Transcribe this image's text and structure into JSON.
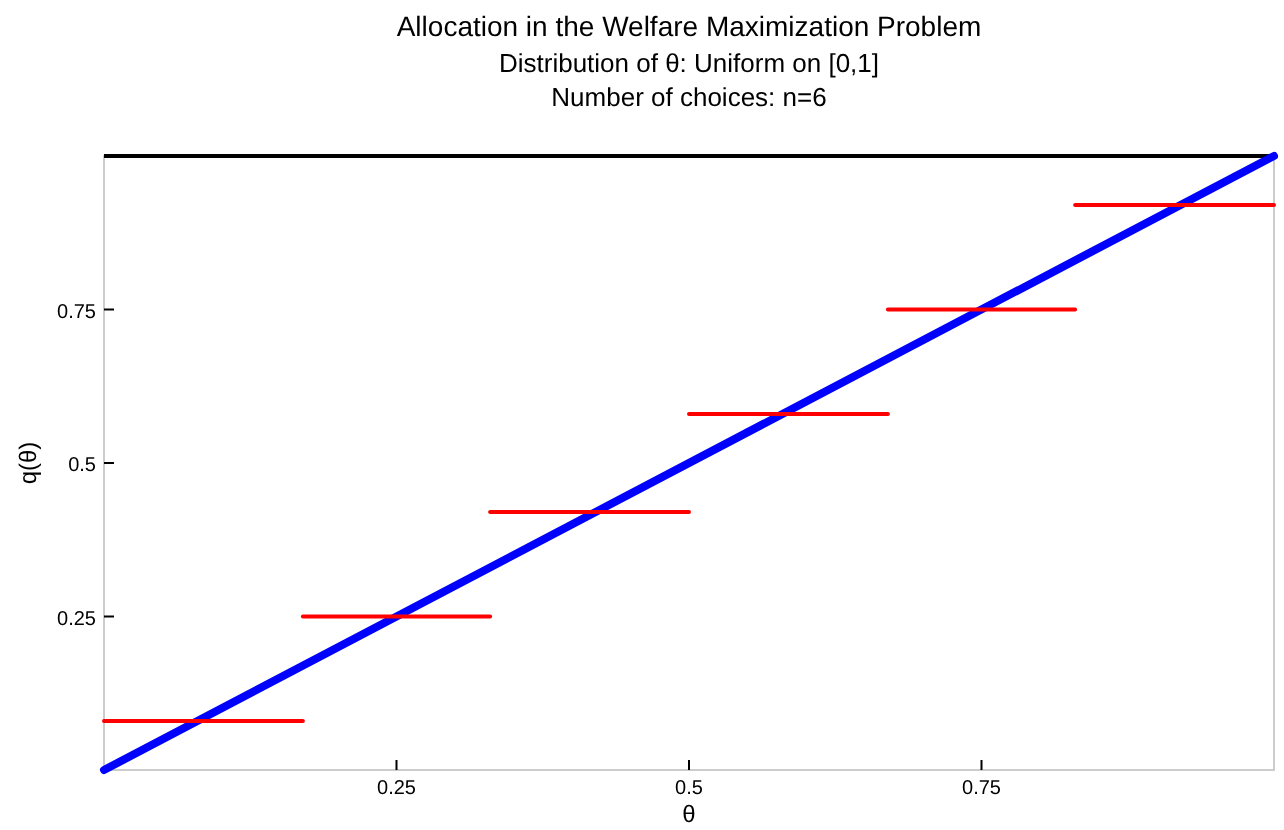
{
  "chart_data": {
    "type": "line",
    "title": "Allocation in the Welfare Maximization Problem",
    "subtitle": "Distribution of θ: Uniform on [0,1]\nNumber of choices: n=6",
    "xlabel": "θ",
    "ylabel": "q(θ)",
    "ylim": [
      0,
      1
    ],
    "yticks": [
      0.25,
      0.5,
      0.75
    ],
    "xlim": [
      0,
      1
    ],
    "xticks": [
      0.25,
      0.5,
      0.75
    ],
    "grid": false,
    "series": [
      {
        "color": "#0000ff",
        "x": [
          0,
          1
        ],
        "values": [
          0,
          1
        ]
      },
      {
        "color": "#ff0000",
        "x": [
          0,
          0.17
        ],
        "values": [
          0.08,
          0.08
        ]
      },
      {
        "color": "#ff0000",
        "x": [
          0.17,
          0.33
        ],
        "values": [
          0.25,
          0.25
        ]
      },
      {
        "color": "#ff0000",
        "x": [
          0.33,
          0.5
        ],
        "values": [
          0.42,
          0.42
        ]
      },
      {
        "color": "#ff0000",
        "x": [
          0.5,
          0.67
        ],
        "values": [
          0.58,
          0.58
        ]
      },
      {
        "color": "#ff0000",
        "x": [
          0.67,
          0.83
        ],
        "values": [
          0.75,
          0.75
        ]
      },
      {
        "color": "#ff0000",
        "x": [
          0.83,
          1
        ],
        "values": [
          0.92,
          0.92
        ]
      }
    ]
  }
}
